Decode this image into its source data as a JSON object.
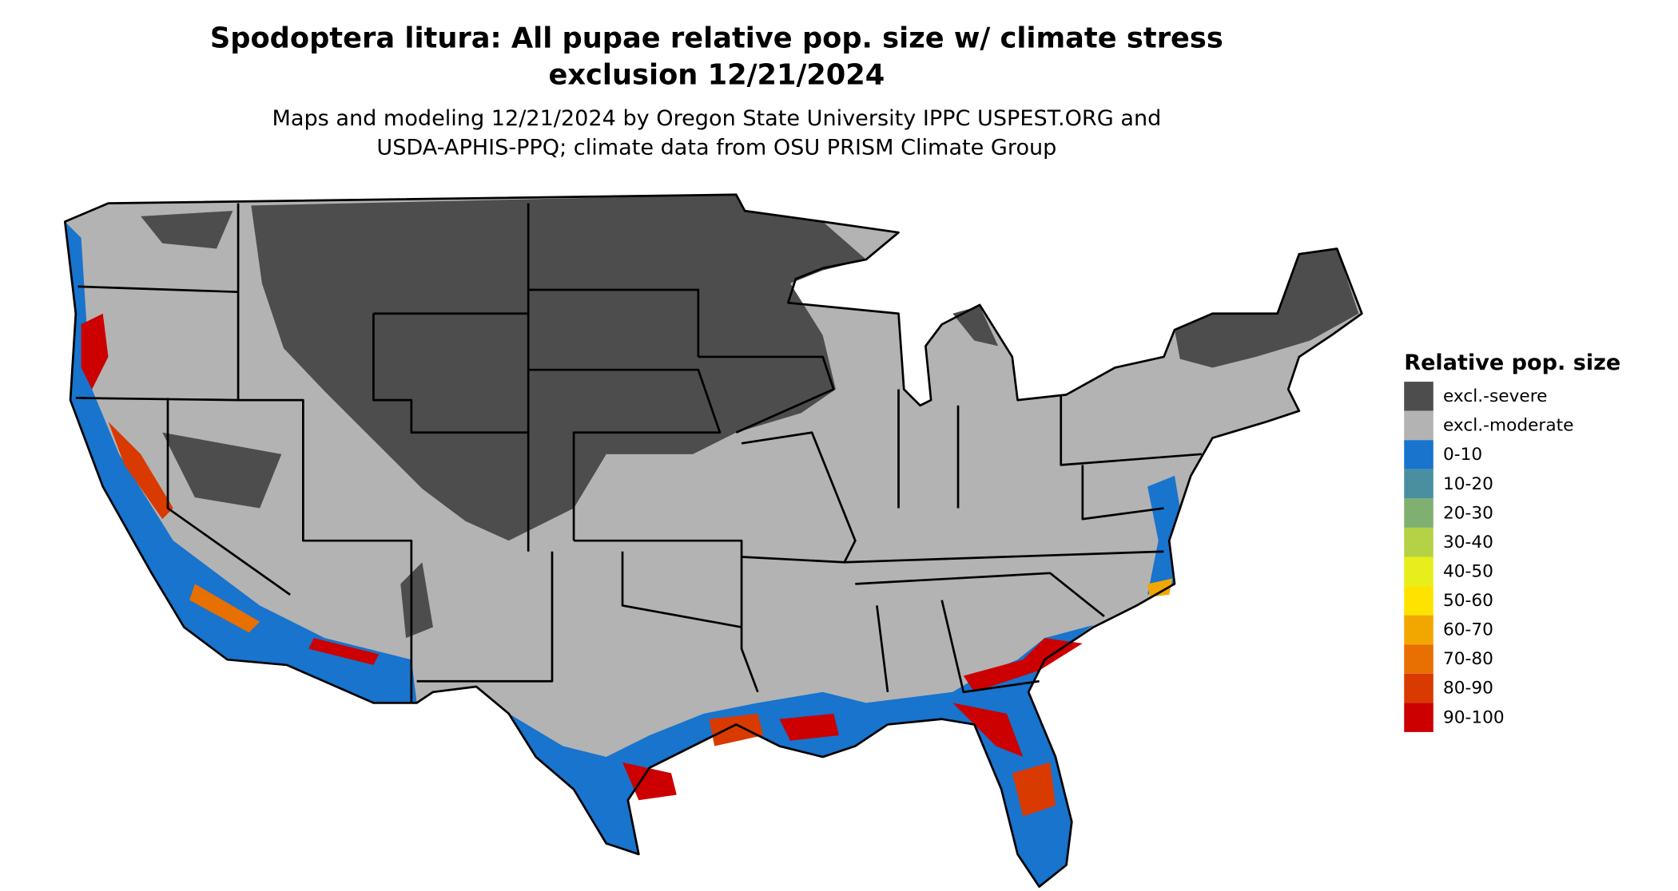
{
  "title": [
    "Spodoptera litura: All pupae relative pop. size w/ climate stress",
    "exclusion 12/21/2024"
  ],
  "subtitle": [
    "Maps and modeling 12/21/2024 by Oregon State University IPPC USPEST.ORG and",
    "USDA-APHIS-PPQ; climate data from OSU PRISM Climate Group"
  ],
  "legend": {
    "title": "Relative pop. size",
    "items": [
      {
        "label": "excl.-severe",
        "color": "#4d4d4d"
      },
      {
        "label": "excl.-moderate",
        "color": "#b3b3b3"
      },
      {
        "label": "0-10",
        "color": "#1874cd"
      },
      {
        "label": "10-20",
        "color": "#4a8fa0"
      },
      {
        "label": "20-30",
        "color": "#7fb071"
      },
      {
        "label": "30-40",
        "color": "#b5d145"
      },
      {
        "label": "40-50",
        "color": "#e6ef1b"
      },
      {
        "label": "50-60",
        "color": "#ffe300"
      },
      {
        "label": "60-70",
        "color": "#f2a700"
      },
      {
        "label": "70-80",
        "color": "#e87000"
      },
      {
        "label": "80-90",
        "color": "#d93a00"
      },
      {
        "label": "90-100",
        "color": "#cc0000"
      }
    ]
  }
}
